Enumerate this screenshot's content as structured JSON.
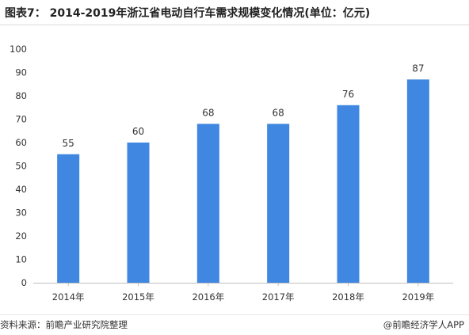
{
  "figure": {
    "title": "图表7： 2014-2019年浙江省电动自行车需求规模变化情况(单位：亿元)",
    "source": "资料来源：前瞻产业研究院整理",
    "credit": "@前瞻经济学人APP"
  },
  "colors": {
    "bar": "#3f87e0",
    "axis": "#bfbfbf",
    "text": "#333333"
  },
  "chart_data": {
    "type": "bar",
    "title": "图表7： 2014-2019年浙江省电动自行车需求规模变化情况(单位：亿元)",
    "categories": [
      "2014年",
      "2015年",
      "2016年",
      "2017年",
      "2018年",
      "2019年"
    ],
    "values": [
      55,
      60,
      68,
      68,
      76,
      87
    ],
    "value_labels": [
      "55",
      "60",
      "68",
      "68",
      "76",
      "87"
    ],
    "yticks": [
      "0",
      "10",
      "20",
      "30",
      "40",
      "50",
      "60",
      "70",
      "80",
      "90",
      "100"
    ],
    "ylim": [
      0,
      100
    ],
    "xlabel": "",
    "ylabel": "",
    "grid": false,
    "legend": "none"
  }
}
